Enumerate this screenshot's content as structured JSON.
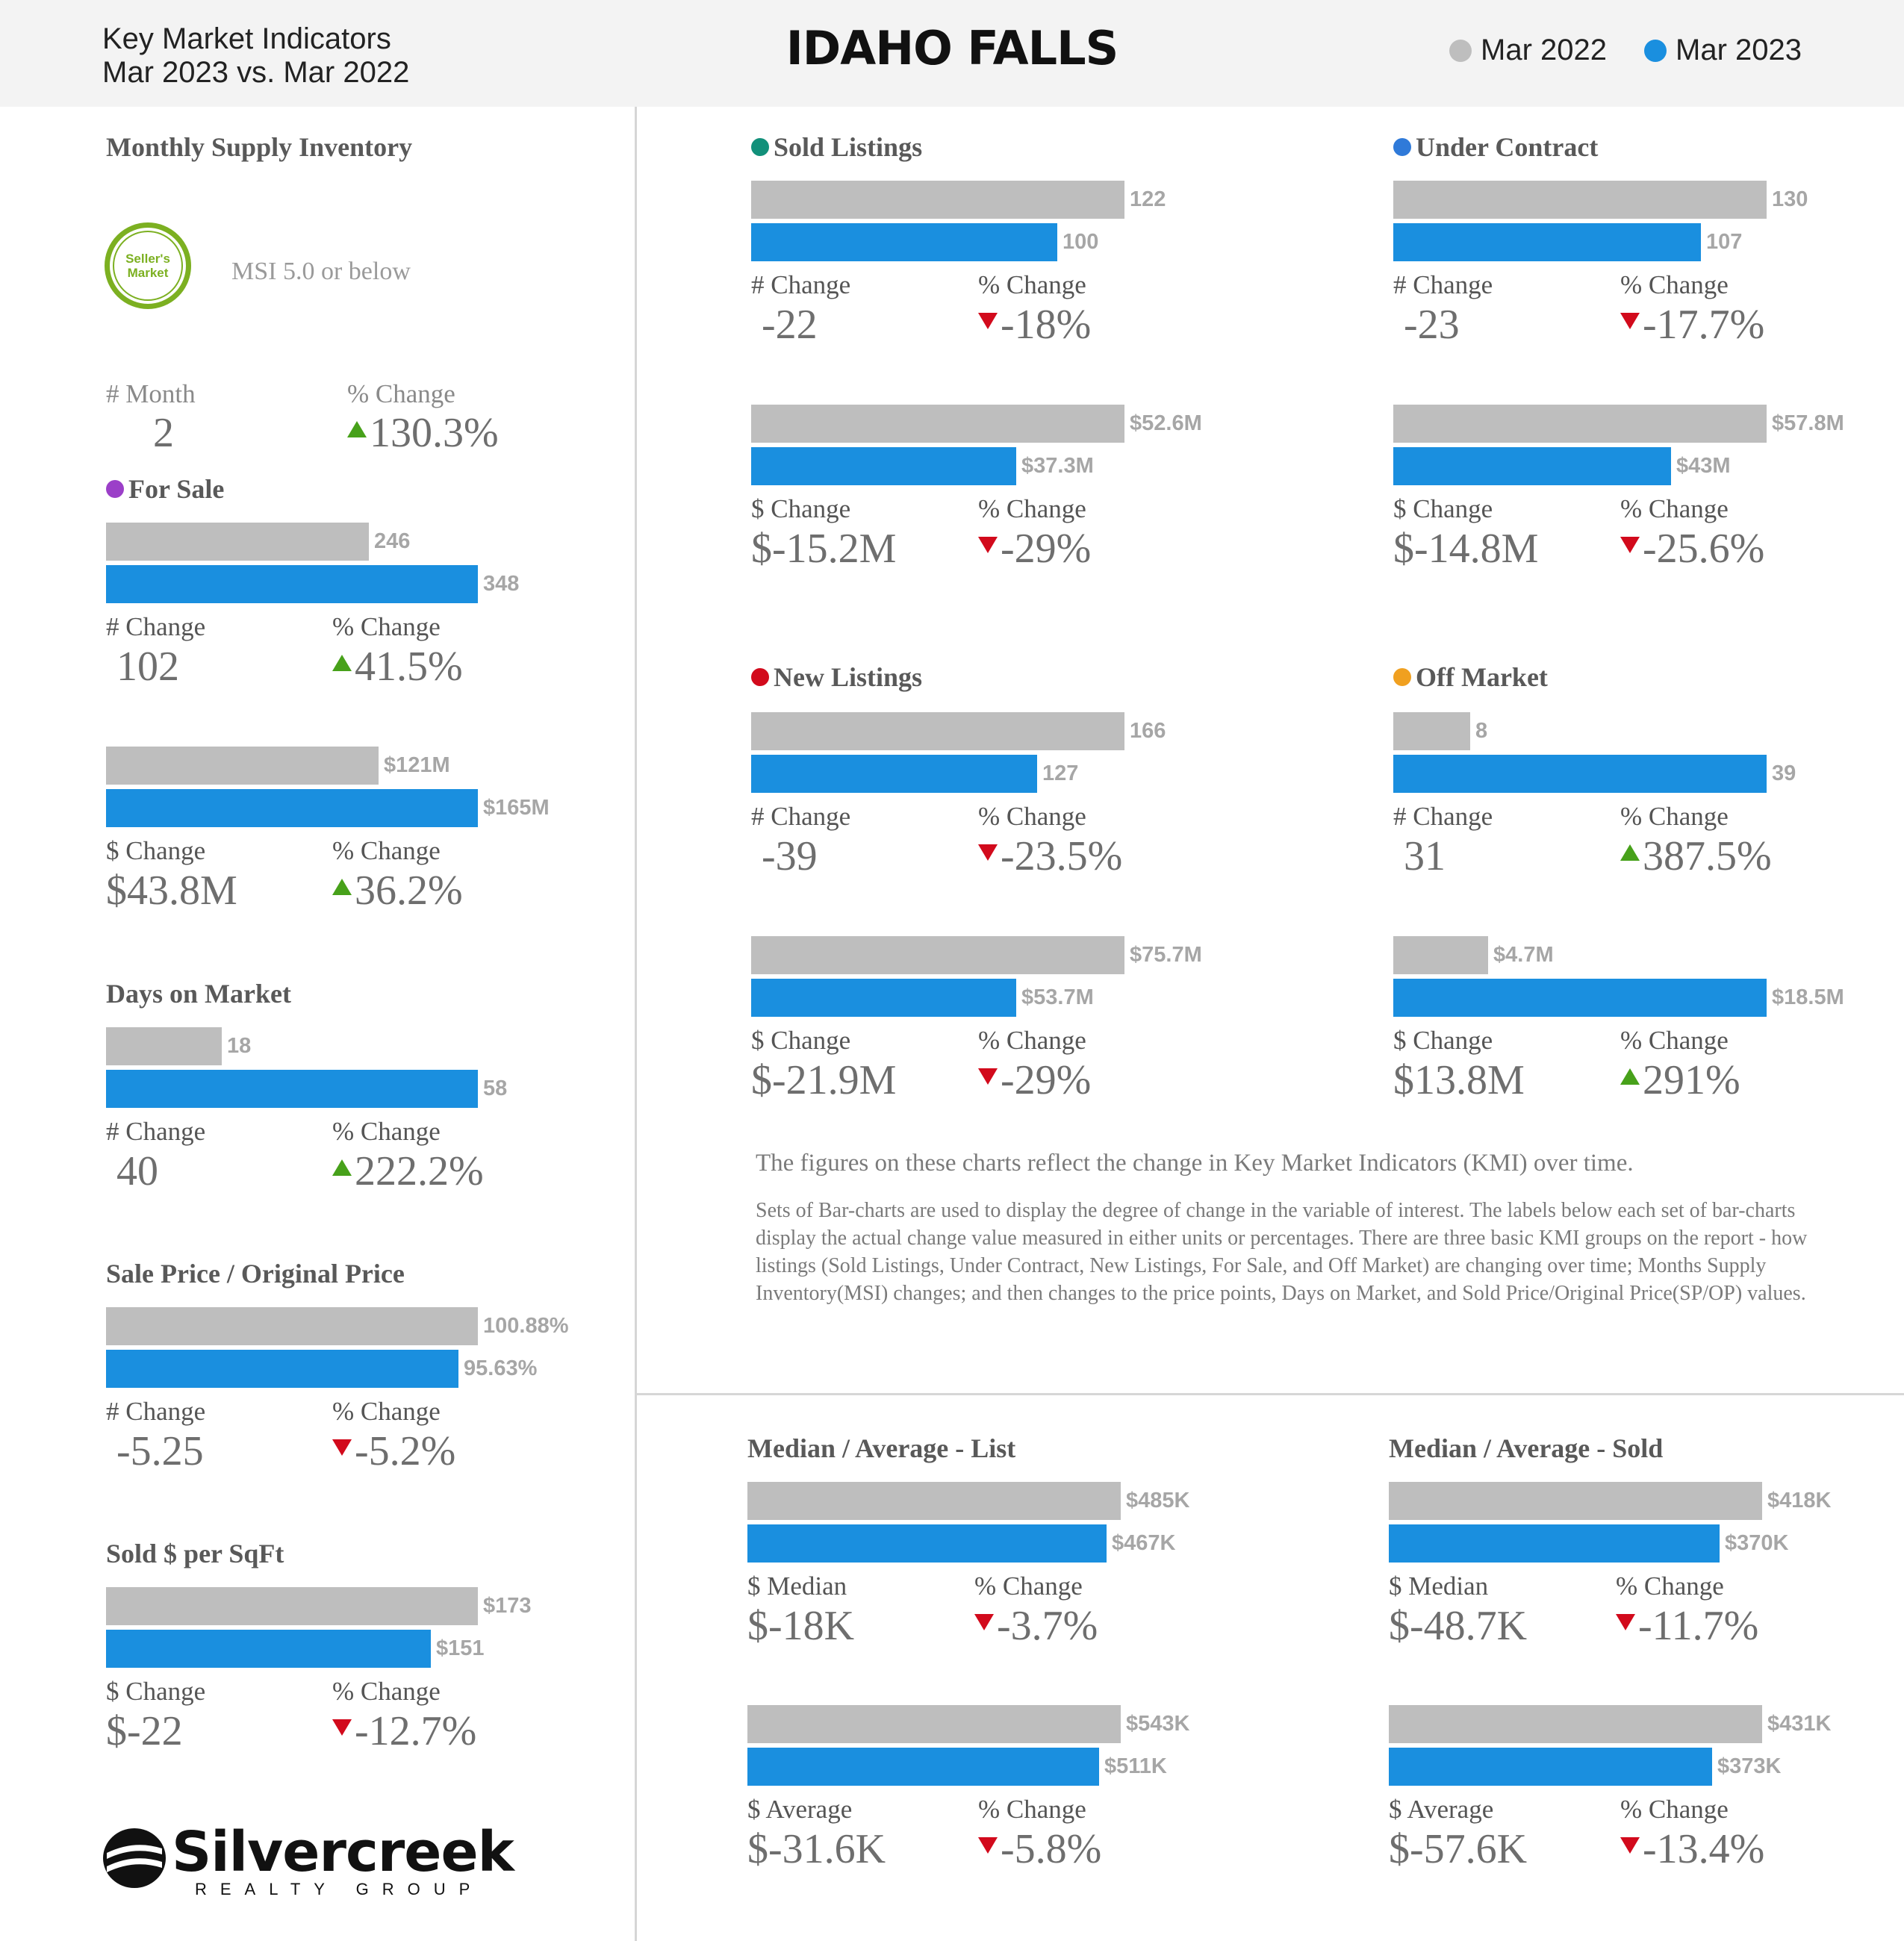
{
  "header": {
    "line1": "Key Market Indicators",
    "line2": "Mar 2023 vs. Mar 2022",
    "title": "IDAHO FALLS",
    "legend": [
      {
        "label": "Mar 2022",
        "color": "#bebebe"
      },
      {
        "label": "Mar 2023",
        "color": "#1a8fdf"
      }
    ]
  },
  "msi": {
    "title": "Monthly Supply Inventory",
    "badge": "Seller's Market",
    "note": "MSI 5.0 or below",
    "num_label": "# Month",
    "num_value": "2",
    "pct_label": "% Change",
    "pct_value": "130.3%",
    "pct_dir": "up"
  },
  "chart_data": [
    {
      "type": "bar",
      "key": "for_sale_count",
      "title": "For Sale",
      "title_dot": "#9b3fc8",
      "categories": [
        "Mar 2022",
        "Mar 2023"
      ],
      "values": [
        246,
        348
      ],
      "labels": [
        "246",
        "348"
      ],
      "change_label": "# Change",
      "change": "102",
      "pct_label": "% Change",
      "pct": "41.5%",
      "dir": "up"
    },
    {
      "type": "bar",
      "key": "for_sale_volume",
      "title": "",
      "categories": [
        "Mar 2022",
        "Mar 2023"
      ],
      "values": [
        121,
        165
      ],
      "labels": [
        "$121M",
        "$165M"
      ],
      "change_label": "$ Change",
      "change": "$43.8M",
      "pct_label": "% Change",
      "pct": "36.2%",
      "dir": "up"
    },
    {
      "type": "bar",
      "key": "dom",
      "title": "Days on Market",
      "categories": [
        "Mar 2022",
        "Mar 2023"
      ],
      "values": [
        18,
        58
      ],
      "labels": [
        "18",
        "58"
      ],
      "change_label": "# Change",
      "change": "40",
      "pct_label": "% Change",
      "pct": "222.2%",
      "dir": "up"
    },
    {
      "type": "bar",
      "key": "spop",
      "title": "Sale Price / Original Price",
      "categories": [
        "Mar 2022",
        "Mar 2023"
      ],
      "values": [
        100.88,
        95.63
      ],
      "labels": [
        "100.88%",
        "95.63%"
      ],
      "change_label": "# Change",
      "change": "-5.25",
      "pct_label": "% Change",
      "pct": "-5.2%",
      "dir": "down"
    },
    {
      "type": "bar",
      "key": "sqft",
      "title": "Sold $ per SqFt",
      "categories": [
        "Mar 2022",
        "Mar 2023"
      ],
      "values": [
        173,
        151
      ],
      "labels": [
        "$173",
        "$151"
      ],
      "change_label": "$ Change",
      "change": "$-22",
      "pct_label": "% Change",
      "pct": "-12.7%",
      "dir": "down"
    },
    {
      "type": "bar",
      "key": "sold_count",
      "title": "Sold Listings",
      "title_dot": "#12907a",
      "categories": [
        "Mar 2022",
        "Mar 2023"
      ],
      "values": [
        122,
        100
      ],
      "labels": [
        "122",
        "100"
      ],
      "change_label": "# Change",
      "change": "-22",
      "pct_label": "% Change",
      "pct": "-18%",
      "dir": "down"
    },
    {
      "type": "bar",
      "key": "sold_volume",
      "title": "",
      "categories": [
        "Mar 2022",
        "Mar 2023"
      ],
      "values": [
        52.6,
        37.3
      ],
      "labels": [
        "$52.6M",
        "$37.3M"
      ],
      "change_label": "$ Change",
      "change": "$-15.2M",
      "pct_label": "% Change",
      "pct": "-29%",
      "dir": "down"
    },
    {
      "type": "bar",
      "key": "uc_count",
      "title": "Under Contract",
      "title_dot": "#2f7ad9",
      "categories": [
        "Mar 2022",
        "Mar 2023"
      ],
      "values": [
        130,
        107
      ],
      "labels": [
        "130",
        "107"
      ],
      "change_label": "# Change",
      "change": "-23",
      "pct_label": "% Change",
      "pct": "-17.7%",
      "dir": "down"
    },
    {
      "type": "bar",
      "key": "uc_volume",
      "title": "",
      "categories": [
        "Mar 2022",
        "Mar 2023"
      ],
      "values": [
        57.8,
        43
      ],
      "labels": [
        "$57.8M",
        "$43M"
      ],
      "change_label": "$ Change",
      "change": "$-14.8M",
      "pct_label": "% Change",
      "pct": "-25.6%",
      "dir": "down"
    },
    {
      "type": "bar",
      "key": "new_count",
      "title": "New Listings",
      "title_dot": "#d20a1c",
      "categories": [
        "Mar 2022",
        "Mar 2023"
      ],
      "values": [
        166,
        127
      ],
      "labels": [
        "166",
        "127"
      ],
      "change_label": "# Change",
      "change": "-39",
      "pct_label": "% Change",
      "pct": "-23.5%",
      "dir": "down"
    },
    {
      "type": "bar",
      "key": "new_volume",
      "title": "",
      "categories": [
        "Mar 2022",
        "Mar 2023"
      ],
      "values": [
        75.7,
        53.7
      ],
      "labels": [
        "$75.7M",
        "$53.7M"
      ],
      "change_label": "$ Change",
      "change": "$-21.9M",
      "pct_label": "% Change",
      "pct": "-29%",
      "dir": "down"
    },
    {
      "type": "bar",
      "key": "off_count",
      "title": "Off Market",
      "title_dot": "#f0a020",
      "categories": [
        "Mar 2022",
        "Mar 2023"
      ],
      "values": [
        8,
        39
      ],
      "labels": [
        "8",
        "39"
      ],
      "change_label": "# Change",
      "change": "31",
      "pct_label": "% Change",
      "pct": "387.5%",
      "dir": "up"
    },
    {
      "type": "bar",
      "key": "off_volume",
      "title": "",
      "categories": [
        "Mar 2022",
        "Mar 2023"
      ],
      "values": [
        4.7,
        18.5
      ],
      "labels": [
        "$4.7M",
        "$18.5M"
      ],
      "change_label": "$ Change",
      "change": "$13.8M",
      "pct_label": "% Change",
      "pct": "291%",
      "dir": "up"
    },
    {
      "type": "bar",
      "key": "list_median",
      "title": "Median / Average - List",
      "categories": [
        "Mar 2022",
        "Mar 2023"
      ],
      "values": [
        485,
        467
      ],
      "labels": [
        "$485K",
        "$467K"
      ],
      "change_label": "$ Median",
      "change": "$-18K",
      "pct_label": "% Change",
      "pct": "-3.7%",
      "dir": "down"
    },
    {
      "type": "bar",
      "key": "list_average",
      "title": "",
      "categories": [
        "Mar 2022",
        "Mar 2023"
      ],
      "values": [
        543,
        511
      ],
      "labels": [
        "$543K",
        "$511K"
      ],
      "change_label": "$ Average",
      "change": "$-31.6K",
      "pct_label": "% Change",
      "pct": "-5.8%",
      "dir": "down"
    },
    {
      "type": "bar",
      "key": "sold_median",
      "title": "Median / Average - Sold",
      "categories": [
        "Mar 2022",
        "Mar 2023"
      ],
      "values": [
        418,
        370
      ],
      "labels": [
        "$418K",
        "$370K"
      ],
      "change_label": "$ Median",
      "change": "$-48.7K",
      "pct_label": "% Change",
      "pct": "-11.7%",
      "dir": "down"
    },
    {
      "type": "bar",
      "key": "sold_average",
      "title": "",
      "categories": [
        "Mar 2022",
        "Mar 2023"
      ],
      "values": [
        431,
        373
      ],
      "labels": [
        "$431K",
        "$373K"
      ],
      "change_label": "$ Average",
      "change": "$-57.6K",
      "pct_label": "% Change",
      "pct": "-13.4%",
      "dir": "down"
    }
  ],
  "notes": {
    "line1": "The figures on these charts reflect the change in Key Market Indicators (KMI) over time.",
    "line2": "Sets of Bar-charts are used to display the degree of change in the variable of interest. The labels below each set of bar-charts display the actual change value measured in either units or percentages. There are three basic KMI groups on the report - how listings (Sold Listings, Under Contract, New Listings, For Sale, and Off Market) are changing over time; Months Supply Inventory(MSI) changes; and then changes to the price points, Days on Market, and Sold Price/Original Price(SP/OP) values."
  },
  "logo": {
    "name": "Silvercreek",
    "sub": "REALTY GROUP"
  }
}
